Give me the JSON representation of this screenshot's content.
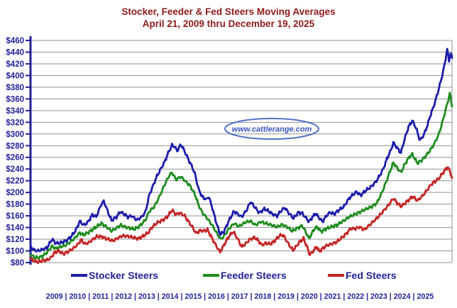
{
  "chart_data": {
    "type": "line",
    "title": "Stocker, Feeder & Fed Steers Moving Averages",
    "subtitle": "April 21, 2009 thru December 19, 2025",
    "title_color": "#8e1a1a",
    "x_domain": [
      2009.3,
      2025.97
    ],
    "x_tick_years": [
      2009,
      2010,
      2011,
      2012,
      2013,
      2014,
      2015,
      2016,
      2017,
      2018,
      2019,
      2020,
      2021,
      2022,
      2023,
      2024,
      2025
    ],
    "x_tick_separator": "|",
    "ylim": [
      80,
      460
    ],
    "ytick_step": 20,
    "ytick_prefix": "$",
    "grid": "horizontal",
    "legend_position": "bottom",
    "axis_color": "#22229a",
    "grid_color": "#909090",
    "tick_label_color": "#22229a",
    "legend_text_color": "#22229a",
    "watermark": {
      "text": "www.cattlerange.com",
      "border_color": "#5472c8",
      "text_color": "#3b55be"
    },
    "series": [
      {
        "name": "Stocker Steers",
        "color": "#1c1caa",
        "points": [
          [
            2009.3,
            107
          ],
          [
            2009.45,
            101
          ],
          [
            2009.6,
            100
          ],
          [
            2009.8,
            103
          ],
          [
            2009.95,
            105
          ],
          [
            2010.15,
            120
          ],
          [
            2010.3,
            113
          ],
          [
            2010.5,
            114
          ],
          [
            2010.7,
            117
          ],
          [
            2010.9,
            124
          ],
          [
            2011.1,
            136
          ],
          [
            2011.25,
            151
          ],
          [
            2011.4,
            144
          ],
          [
            2011.55,
            148
          ],
          [
            2011.75,
            162
          ],
          [
            2011.9,
            158
          ],
          [
            2012.1,
            180
          ],
          [
            2012.2,
            185
          ],
          [
            2012.35,
            168
          ],
          [
            2012.5,
            152
          ],
          [
            2012.7,
            158
          ],
          [
            2012.85,
            167
          ],
          [
            2013.0,
            163
          ],
          [
            2013.15,
            158
          ],
          [
            2013.3,
            160
          ],
          [
            2013.5,
            153
          ],
          [
            2013.7,
            158
          ],
          [
            2013.85,
            167
          ],
          [
            2014.0,
            196
          ],
          [
            2014.15,
            212
          ],
          [
            2014.3,
            228
          ],
          [
            2014.45,
            240
          ],
          [
            2014.6,
            252
          ],
          [
            2014.75,
            268
          ],
          [
            2014.9,
            281
          ],
          [
            2015.0,
            278
          ],
          [
            2015.1,
            271
          ],
          [
            2015.25,
            282
          ],
          [
            2015.4,
            270
          ],
          [
            2015.55,
            256
          ],
          [
            2015.7,
            243
          ],
          [
            2015.8,
            232
          ],
          [
            2015.95,
            205
          ],
          [
            2016.1,
            192
          ],
          [
            2016.25,
            188
          ],
          [
            2016.35,
            193
          ],
          [
            2016.5,
            172
          ],
          [
            2016.65,
            148
          ],
          [
            2016.8,
            128
          ],
          [
            2016.95,
            133
          ],
          [
            2017.15,
            152
          ],
          [
            2017.35,
            168
          ],
          [
            2017.5,
            163
          ],
          [
            2017.65,
            158
          ],
          [
            2017.85,
            170
          ],
          [
            2018.0,
            184
          ],
          [
            2018.15,
            176
          ],
          [
            2018.35,
            165
          ],
          [
            2018.55,
            172
          ],
          [
            2018.75,
            167
          ],
          [
            2018.9,
            162
          ],
          [
            2019.05,
            160
          ],
          [
            2019.2,
            168
          ],
          [
            2019.35,
            174
          ],
          [
            2019.55,
            163
          ],
          [
            2019.7,
            156
          ],
          [
            2019.9,
            166
          ],
          [
            2020.05,
            164
          ],
          [
            2020.2,
            156
          ],
          [
            2020.32,
            150
          ],
          [
            2020.45,
            158
          ],
          [
            2020.58,
            164
          ],
          [
            2020.7,
            157
          ],
          [
            2020.85,
            150
          ],
          [
            2021.0,
            160
          ],
          [
            2021.15,
            166
          ],
          [
            2021.3,
            163
          ],
          [
            2021.5,
            170
          ],
          [
            2021.7,
            176
          ],
          [
            2021.9,
            190
          ],
          [
            2022.05,
            196
          ],
          [
            2022.2,
            201
          ],
          [
            2022.35,
            195
          ],
          [
            2022.55,
            203
          ],
          [
            2022.75,
            209
          ],
          [
            2022.95,
            218
          ],
          [
            2023.1,
            228
          ],
          [
            2023.25,
            240
          ],
          [
            2023.4,
            258
          ],
          [
            2023.55,
            272
          ],
          [
            2023.65,
            285
          ],
          [
            2023.8,
            276
          ],
          [
            2023.95,
            268
          ],
          [
            2024.1,
            292
          ],
          [
            2024.25,
            312
          ],
          [
            2024.4,
            323
          ],
          [
            2024.55,
            310
          ],
          [
            2024.7,
            289
          ],
          [
            2024.85,
            298
          ],
          [
            2025.0,
            315
          ],
          [
            2025.1,
            330
          ],
          [
            2025.25,
            348
          ],
          [
            2025.4,
            370
          ],
          [
            2025.55,
            394
          ],
          [
            2025.68,
            420
          ],
          [
            2025.78,
            445
          ],
          [
            2025.85,
            426
          ],
          [
            2025.92,
            438
          ],
          [
            2025.97,
            430
          ]
        ]
      },
      {
        "name": "Feeder Steers",
        "color": "#1f8c1f",
        "points": [
          [
            2009.3,
            94
          ],
          [
            2009.45,
            89
          ],
          [
            2009.6,
            88
          ],
          [
            2009.8,
            92
          ],
          [
            2009.95,
            97
          ],
          [
            2010.15,
            108
          ],
          [
            2010.3,
            104
          ],
          [
            2010.5,
            107
          ],
          [
            2010.7,
            110
          ],
          [
            2010.9,
            116
          ],
          [
            2011.1,
            124
          ],
          [
            2011.25,
            131
          ],
          [
            2011.4,
            127
          ],
          [
            2011.6,
            132
          ],
          [
            2011.8,
            138
          ],
          [
            2012.1,
            147
          ],
          [
            2012.25,
            143
          ],
          [
            2012.5,
            134
          ],
          [
            2012.7,
            139
          ],
          [
            2012.85,
            144
          ],
          [
            2013.0,
            142
          ],
          [
            2013.2,
            139
          ],
          [
            2013.4,
            137
          ],
          [
            2013.6,
            142
          ],
          [
            2013.85,
            153
          ],
          [
            2014.0,
            168
          ],
          [
            2014.2,
            176
          ],
          [
            2014.4,
            193
          ],
          [
            2014.6,
            213
          ],
          [
            2014.8,
            230
          ],
          [
            2014.9,
            234
          ],
          [
            2015.05,
            222
          ],
          [
            2015.25,
            227
          ],
          [
            2015.45,
            218
          ],
          [
            2015.6,
            212
          ],
          [
            2015.8,
            197
          ],
          [
            2015.95,
            178
          ],
          [
            2016.1,
            165
          ],
          [
            2016.3,
            155
          ],
          [
            2016.5,
            143
          ],
          [
            2016.7,
            128
          ],
          [
            2016.82,
            120
          ],
          [
            2016.95,
            125
          ],
          [
            2017.15,
            138
          ],
          [
            2017.35,
            147
          ],
          [
            2017.55,
            142
          ],
          [
            2017.8,
            149
          ],
          [
            2018.0,
            151
          ],
          [
            2018.2,
            144
          ],
          [
            2018.4,
            150
          ],
          [
            2018.6,
            147
          ],
          [
            2018.85,
            144
          ],
          [
            2019.05,
            141
          ],
          [
            2019.25,
            145
          ],
          [
            2019.45,
            141
          ],
          [
            2019.65,
            134
          ],
          [
            2019.85,
            139
          ],
          [
            2020.05,
            143
          ],
          [
            2020.32,
            121
          ],
          [
            2020.5,
            136
          ],
          [
            2020.62,
            141
          ],
          [
            2020.8,
            133
          ],
          [
            2021.0,
            138
          ],
          [
            2021.2,
            141
          ],
          [
            2021.45,
            145
          ],
          [
            2021.7,
            152
          ],
          [
            2021.9,
            158
          ],
          [
            2022.1,
            162
          ],
          [
            2022.3,
            166
          ],
          [
            2022.55,
            171
          ],
          [
            2022.8,
            176
          ],
          [
            2023.0,
            182
          ],
          [
            2023.2,
            200
          ],
          [
            2023.4,
            222
          ],
          [
            2023.55,
            240
          ],
          [
            2023.65,
            251
          ],
          [
            2023.8,
            242
          ],
          [
            2023.95,
            234
          ],
          [
            2024.1,
            248
          ],
          [
            2024.3,
            262
          ],
          [
            2024.4,
            265
          ],
          [
            2024.6,
            250
          ],
          [
            2024.8,
            256
          ],
          [
            2025.0,
            266
          ],
          [
            2025.15,
            275
          ],
          [
            2025.3,
            286
          ],
          [
            2025.45,
            300
          ],
          [
            2025.6,
            322
          ],
          [
            2025.72,
            342
          ],
          [
            2025.82,
            358
          ],
          [
            2025.88,
            370
          ],
          [
            2025.97,
            347
          ]
        ]
      },
      {
        "name": "Fed Steers",
        "color": "#c42424",
        "points": [
          [
            2009.3,
            86
          ],
          [
            2009.45,
            83
          ],
          [
            2009.6,
            81
          ],
          [
            2009.8,
            84
          ],
          [
            2009.95,
            84
          ],
          [
            2010.1,
            88
          ],
          [
            2010.25,
            97
          ],
          [
            2010.4,
            100
          ],
          [
            2010.6,
            95
          ],
          [
            2010.8,
            99
          ],
          [
            2010.95,
            103
          ],
          [
            2011.15,
            110
          ],
          [
            2011.3,
            119
          ],
          [
            2011.45,
            112
          ],
          [
            2011.6,
            114
          ],
          [
            2011.8,
            121
          ],
          [
            2011.95,
            125
          ],
          [
            2012.15,
            124
          ],
          [
            2012.35,
            120
          ],
          [
            2012.55,
            117
          ],
          [
            2012.75,
            122
          ],
          [
            2012.95,
            126
          ],
          [
            2013.15,
            125
          ],
          [
            2013.35,
            123
          ],
          [
            2013.55,
            121
          ],
          [
            2013.75,
            125
          ],
          [
            2013.95,
            131
          ],
          [
            2014.1,
            140
          ],
          [
            2014.3,
            148
          ],
          [
            2014.5,
            152
          ],
          [
            2014.7,
            158
          ],
          [
            2014.9,
            170
          ],
          [
            2015.05,
            162
          ],
          [
            2015.2,
            165
          ],
          [
            2015.4,
            160
          ],
          [
            2015.55,
            150
          ],
          [
            2015.7,
            141
          ],
          [
            2015.85,
            130
          ],
          [
            2016.0,
            135
          ],
          [
            2016.15,
            134
          ],
          [
            2016.3,
            136
          ],
          [
            2016.5,
            120
          ],
          [
            2016.65,
            108
          ],
          [
            2016.8,
            98
          ],
          [
            2016.95,
            110
          ],
          [
            2017.15,
            125
          ],
          [
            2017.32,
            133
          ],
          [
            2017.5,
            120
          ],
          [
            2017.65,
            107
          ],
          [
            2017.8,
            112
          ],
          [
            2017.95,
            119
          ],
          [
            2018.15,
            123
          ],
          [
            2018.3,
            118
          ],
          [
            2018.45,
            110
          ],
          [
            2018.6,
            113
          ],
          [
            2018.8,
            112
          ],
          [
            2018.95,
            117
          ],
          [
            2019.15,
            126
          ],
          [
            2019.3,
            127
          ],
          [
            2019.5,
            112
          ],
          [
            2019.68,
            101
          ],
          [
            2019.85,
            110
          ],
          [
            2019.95,
            116
          ],
          [
            2020.1,
            121
          ],
          [
            2020.25,
            105
          ],
          [
            2020.35,
            93
          ],
          [
            2020.5,
            101
          ],
          [
            2020.62,
            107
          ],
          [
            2020.72,
            99
          ],
          [
            2020.85,
            104
          ],
          [
            2021.0,
            109
          ],
          [
            2021.2,
            112
          ],
          [
            2021.4,
            115
          ],
          [
            2021.6,
            122
          ],
          [
            2021.8,
            130
          ],
          [
            2021.95,
            138
          ],
          [
            2022.15,
            138
          ],
          [
            2022.3,
            141
          ],
          [
            2022.5,
            136
          ],
          [
            2022.7,
            144
          ],
          [
            2022.9,
            152
          ],
          [
            2023.05,
            158
          ],
          [
            2023.25,
            168
          ],
          [
            2023.45,
            178
          ],
          [
            2023.65,
            190
          ],
          [
            2023.8,
            182
          ],
          [
            2023.95,
            176
          ],
          [
            2024.1,
            181
          ],
          [
            2024.25,
            187
          ],
          [
            2024.42,
            193
          ],
          [
            2024.6,
            186
          ],
          [
            2024.8,
            194
          ],
          [
            2025.0,
            205
          ],
          [
            2025.15,
            214
          ],
          [
            2025.3,
            219
          ],
          [
            2025.45,
            224
          ],
          [
            2025.6,
            233
          ],
          [
            2025.72,
            240
          ],
          [
            2025.8,
            243
          ],
          [
            2025.88,
            237
          ],
          [
            2025.97,
            225
          ]
        ]
      }
    ]
  }
}
